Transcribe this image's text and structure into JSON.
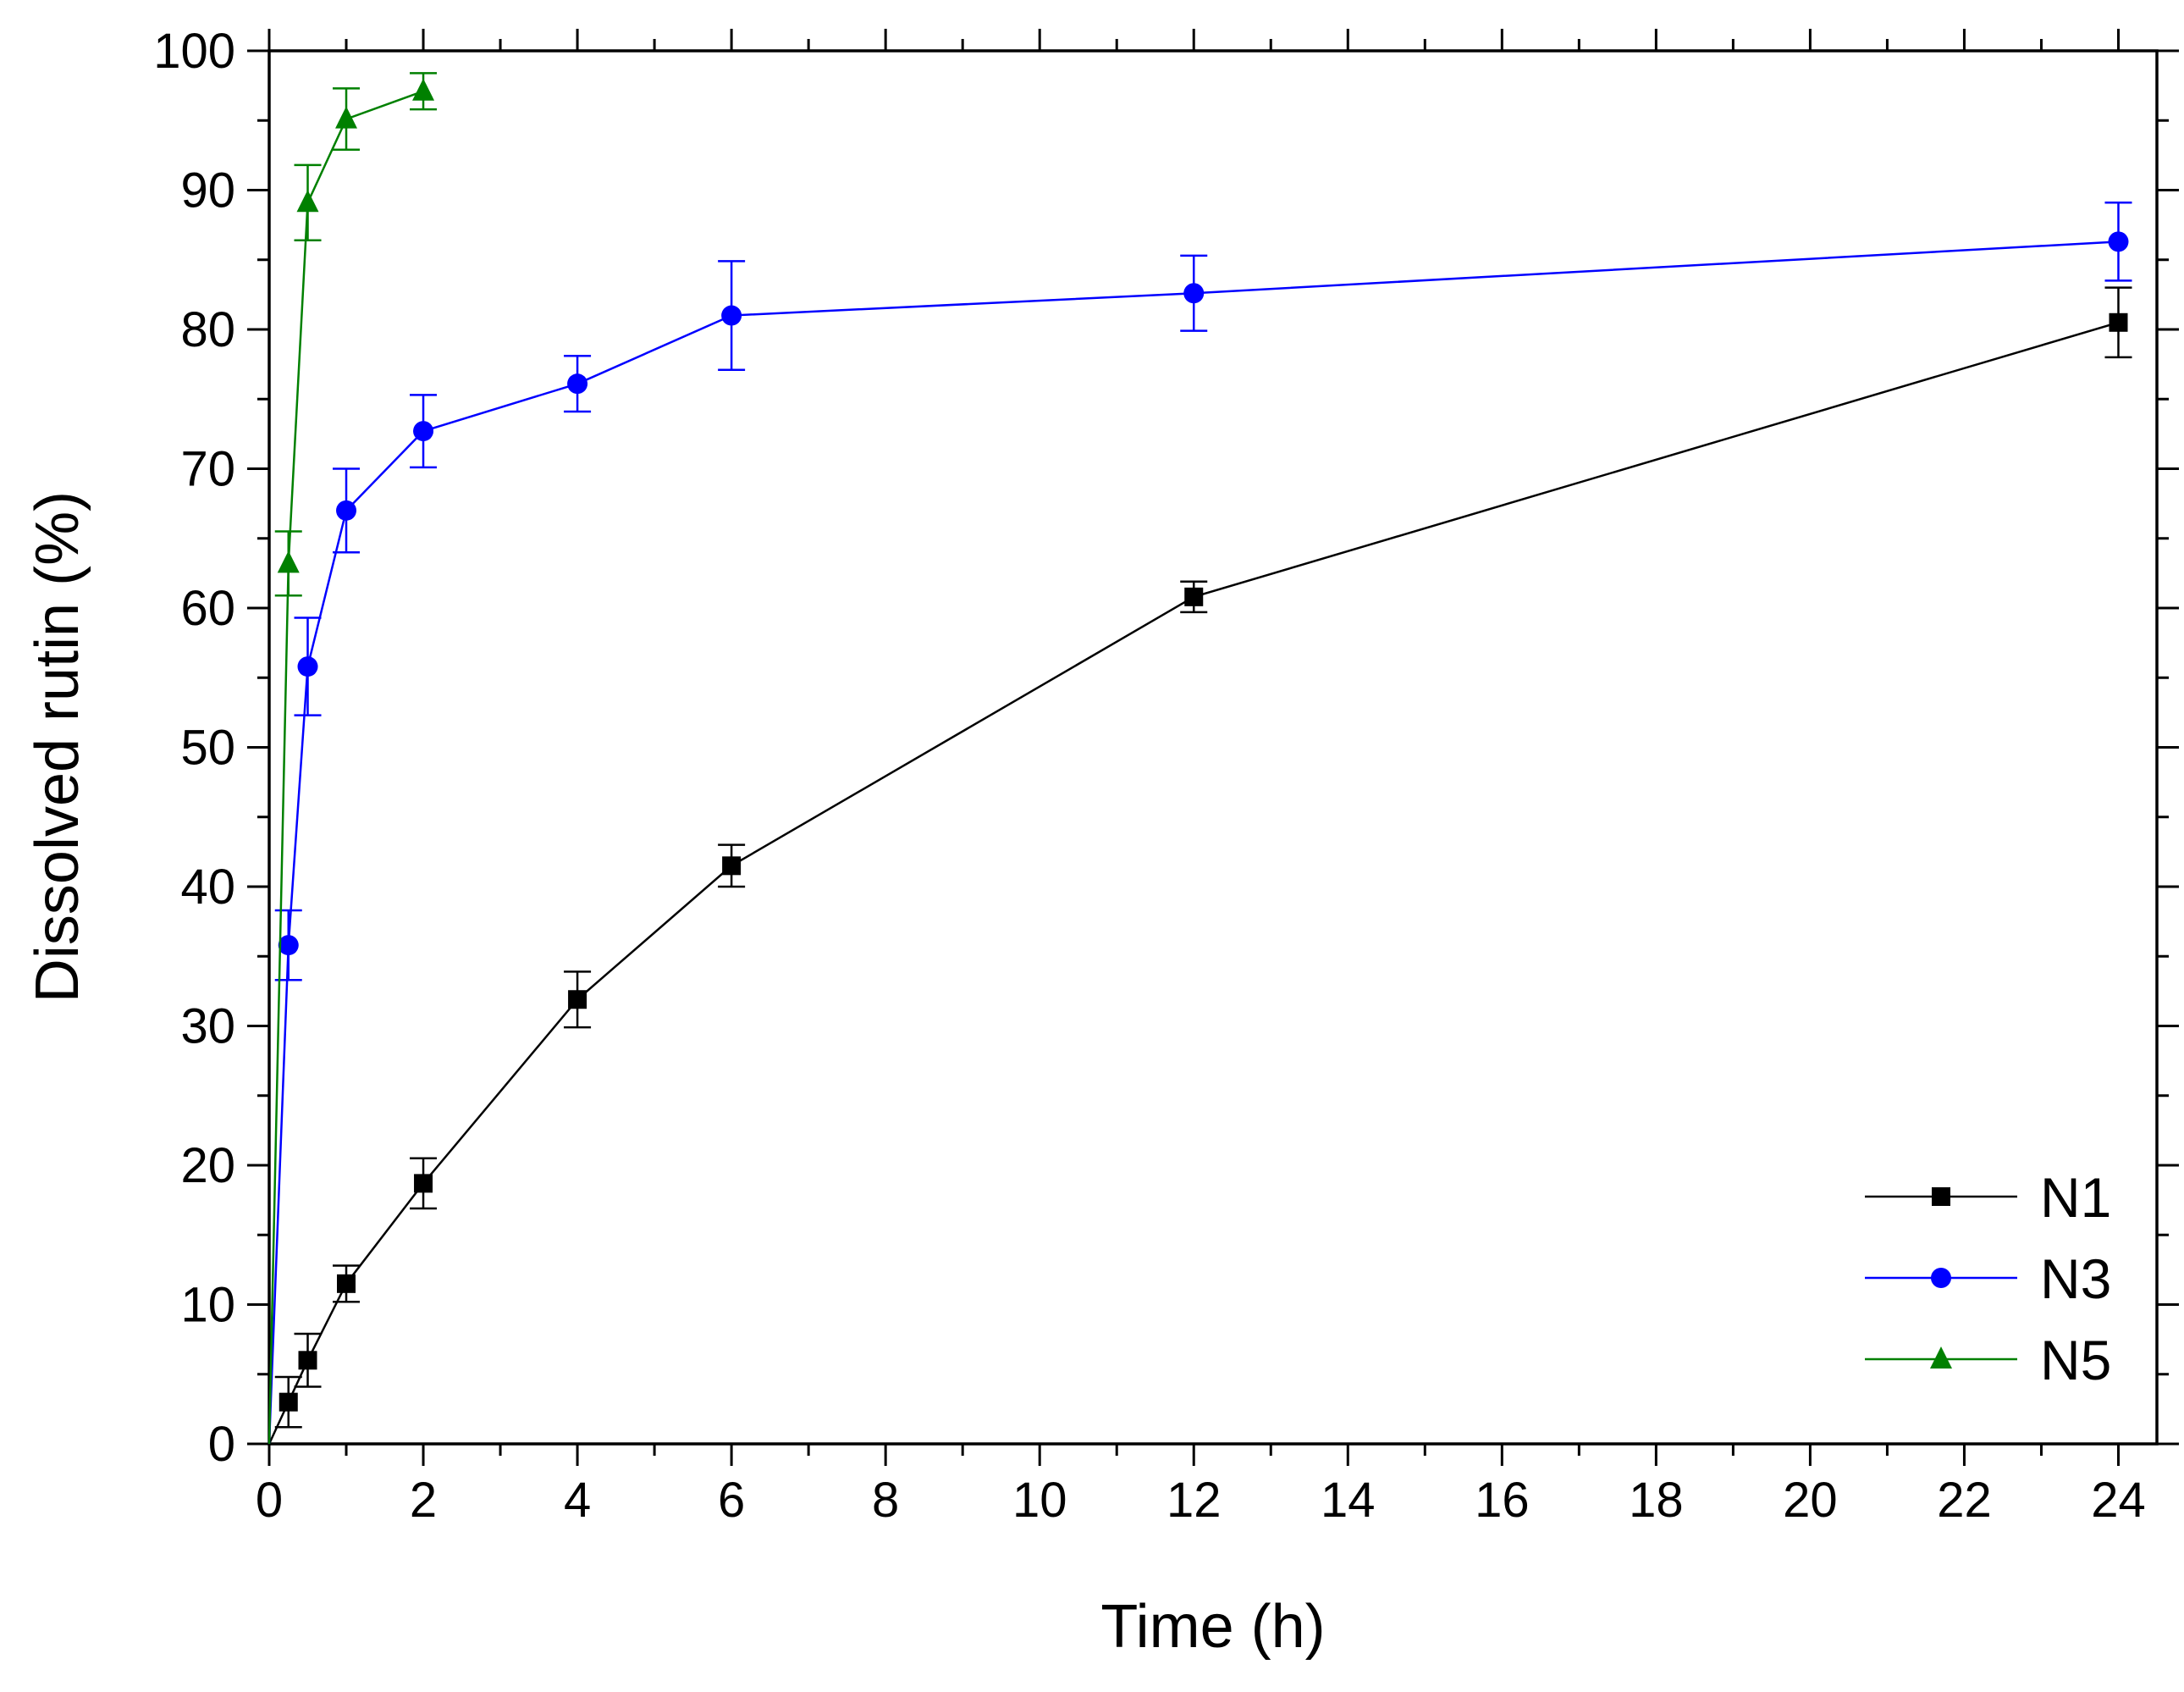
{
  "chart_data": {
    "type": "line",
    "title": "",
    "xlabel": "Time (h)",
    "ylabel": "Dissolved rutin (%)",
    "xlim": [
      0,
      24.5
    ],
    "ylim": [
      0,
      100
    ],
    "xticks": [
      0,
      2,
      4,
      6,
      8,
      10,
      12,
      14,
      16,
      18,
      20,
      22,
      24
    ],
    "xtick_labels": [
      "0",
      "2",
      "4",
      "6",
      "8",
      "10",
      "12",
      "14",
      "16",
      "18",
      "20",
      "22",
      "24"
    ],
    "yticks": [
      0,
      10,
      20,
      30,
      40,
      50,
      60,
      70,
      80,
      90,
      100
    ],
    "ytick_labels": [
      "0",
      "10",
      "20",
      "30",
      "40",
      "50",
      "60",
      "70",
      "80",
      "90",
      "100"
    ],
    "grid": false,
    "legend_position": "bottom-right",
    "series": [
      {
        "name": "N1",
        "color": "#000000",
        "marker": "square",
        "x": [
          0,
          0.25,
          0.5,
          1,
          2,
          4,
          6,
          12,
          24
        ],
        "y": [
          0,
          3,
          6,
          11.5,
          18.7,
          31.9,
          41.5,
          60.8,
          80.5
        ],
        "err": [
          0,
          1.8,
          1.9,
          1.3,
          1.8,
          2.0,
          1.5,
          1.1,
          2.5
        ]
      },
      {
        "name": "N3",
        "color": "#0000FF",
        "marker": "circle",
        "x": [
          0,
          0.25,
          0.5,
          1,
          2,
          4,
          6,
          12,
          24
        ],
        "y": [
          0,
          35.8,
          55.8,
          67,
          72.7,
          76.1,
          81,
          82.6,
          86.3
        ],
        "err": [
          0,
          2.5,
          3.5,
          3.0,
          2.6,
          2.0,
          3.9,
          2.7,
          2.8
        ]
      },
      {
        "name": "N5",
        "color": "#008000",
        "marker": "triangle",
        "x": [
          0,
          0.25,
          0.5,
          1,
          2
        ],
        "y": [
          0,
          63.2,
          89.1,
          95.1,
          97.1
        ],
        "err": [
          0,
          2.3,
          2.7,
          2.2,
          1.3
        ]
      }
    ]
  }
}
